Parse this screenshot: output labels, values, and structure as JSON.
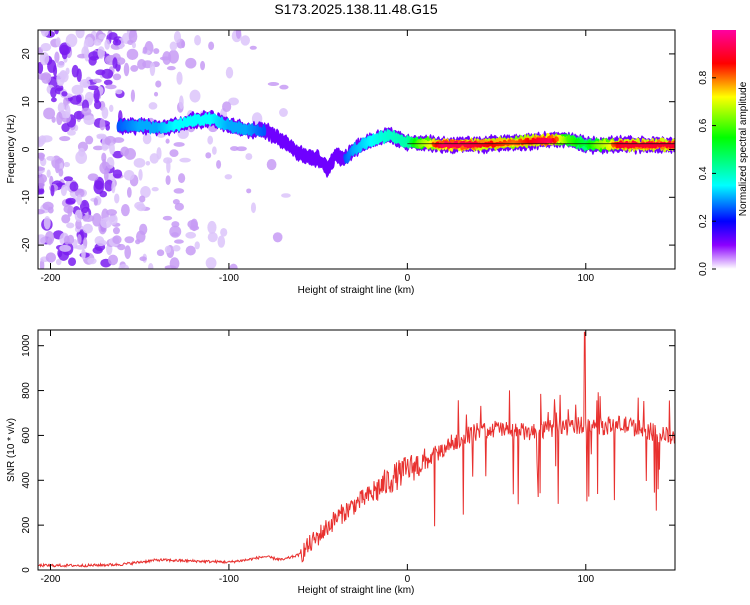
{
  "title": "S173.2025.138.11.48.G15",
  "chart_data": [
    {
      "type": "heatmap",
      "xlabel": "Height of straight line (km)",
      "ylabel": "Frequency (Hz)",
      "xlim": [
        -207,
        150
      ],
      "ylim": [
        -25,
        25
      ],
      "xticks": [
        -200,
        -100,
        0,
        100
      ],
      "yticks": [
        20,
        10,
        0,
        -10,
        -20
      ],
      "colorbar": {
        "label": "Normalized spectral amplitude",
        "range": [
          0,
          1
        ],
        "ticks": [
          "0.0",
          "0.2",
          "0.4",
          "0.6",
          "0.8"
        ],
        "colormap": "rainbow"
      },
      "ridge": {
        "x": [
          -162,
          -150,
          -140,
          -130,
          -120,
          -110,
          -100,
          -90,
          -80,
          -70,
          -60,
          -50,
          -45,
          -40,
          -35,
          -30,
          -20,
          -10,
          0,
          20,
          40,
          60,
          80,
          90,
          100,
          120,
          150
        ],
        "freq": [
          5,
          5,
          4.5,
          5,
          6,
          6.5,
          5,
          4,
          4,
          2,
          -1,
          -2,
          -4,
          -1,
          -2,
          0,
          2,
          3,
          1.5,
          1,
          1,
          1.5,
          2,
          2,
          1,
          1,
          1
        ],
        "amplitude": [
          0.25,
          0.3,
          0.3,
          0.35,
          0.35,
          0.35,
          0.3,
          0.3,
          0.25,
          0.2,
          0.2,
          0.15,
          0.15,
          0.2,
          0.25,
          0.3,
          0.35,
          0.4,
          0.45,
          0.95,
          0.9,
          0.8,
          0.95,
          0.6,
          0.5,
          0.9,
          0.9
        ]
      }
    },
    {
      "type": "line",
      "xlabel": "Height of straight line (km)",
      "ylabel": "SNR (10 * v/v)",
      "xlim": [
        -207,
        150
      ],
      "ylim": [
        0,
        1070
      ],
      "xticks": [
        -200,
        -100,
        0,
        100
      ],
      "yticks": [
        0,
        200,
        400,
        600,
        800,
        1000
      ],
      "color": "#e8312f",
      "trend": {
        "x": [
          -207,
          -180,
          -160,
          -140,
          -120,
          -100,
          -90,
          -80,
          -70,
          -60,
          -50,
          -40,
          -30,
          -20,
          -10,
          0,
          10,
          20,
          30,
          40,
          50,
          60,
          70,
          80,
          90,
          100,
          110,
          120,
          130,
          140,
          150
        ],
        "y": [
          20,
          20,
          25,
          45,
          40,
          35,
          45,
          60,
          45,
          70,
          150,
          230,
          290,
          340,
          400,
          450,
          480,
          540,
          590,
          620,
          630,
          620,
          610,
          630,
          640,
          650,
          640,
          650,
          630,
          610,
          590
        ]
      }
    }
  ]
}
